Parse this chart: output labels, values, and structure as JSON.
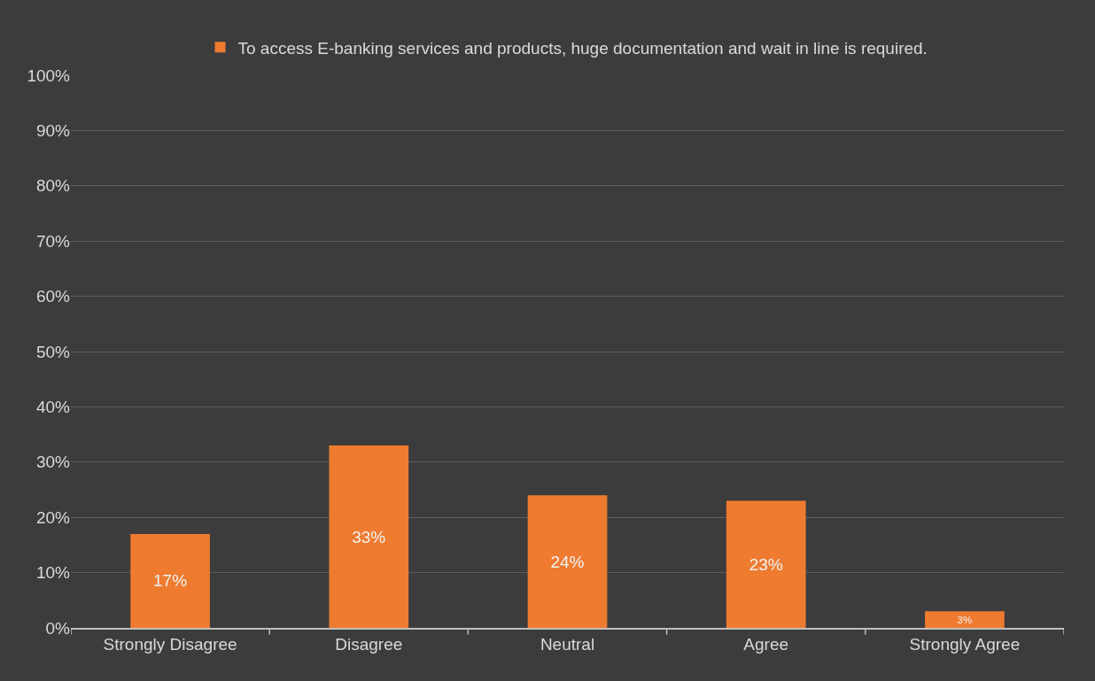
{
  "chart_data": {
    "type": "bar",
    "categories": [
      "Strongly Disagree",
      "Disagree",
      "Neutral",
      "Agree",
      "Strongly Agree"
    ],
    "series": [
      {
        "name": "To access E-banking services and products, huge documentation and wait in line is required.",
        "color": "#ee7b30",
        "values": [
          17,
          33,
          24,
          23,
          3
        ],
        "value_labels": [
          "17%",
          "33%",
          "24%",
          "23%",
          "3%"
        ]
      }
    ],
    "ylim": [
      0,
      100
    ],
    "yticks": [
      {
        "value": 0,
        "label": "0%"
      },
      {
        "value": 10,
        "label": "10%"
      },
      {
        "value": 20,
        "label": "20%"
      },
      {
        "value": 30,
        "label": "30%"
      },
      {
        "value": 40,
        "label": "40%"
      },
      {
        "value": 50,
        "label": "50%"
      },
      {
        "value": 60,
        "label": "60%"
      },
      {
        "value": 70,
        "label": "70%"
      },
      {
        "value": 80,
        "label": "80%"
      },
      {
        "value": 90,
        "label": "90%"
      },
      {
        "value": 100,
        "label": "100%"
      }
    ],
    "grid": "y",
    "legend": "top"
  }
}
